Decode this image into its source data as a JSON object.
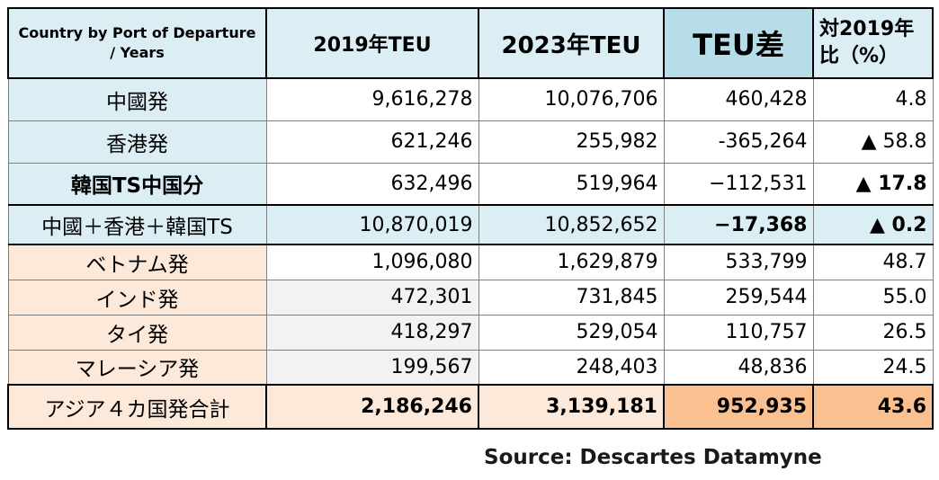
{
  "table": {
    "headers": [
      "Country by Port of Departure / Years",
      "2019年TEU",
      "2023年TEU",
      "TEU差",
      "対2019年比（%）"
    ],
    "rows": [
      {
        "label": "中國発",
        "y2019": "9,616,278",
        "y2023": "10,076,706",
        "diff": "460,428",
        "pct": "4.8"
      },
      {
        "label": "香港発",
        "y2019": "621,246",
        "y2023": "255,982",
        "diff": "-365,264",
        "pct": "▲ 58.8"
      },
      {
        "label": "韓国TS中国分",
        "y2019": "632,496",
        "y2023": "519,964",
        "diff": "−112,531",
        "pct": "▲ 17.8"
      },
      {
        "label": "中國＋香港＋韓国TS",
        "y2019": "10,870,019",
        "y2023": "10,852,652",
        "diff": "−17,368",
        "pct": "▲ 0.2"
      },
      {
        "label": "ベトナム発",
        "y2019": "1,096,080",
        "y2023": "1,629,879",
        "diff": "533,799",
        "pct": "48.7"
      },
      {
        "label": "インド発",
        "y2019": "472,301",
        "y2023": "731,845",
        "diff": "259,544",
        "pct": "55.0"
      },
      {
        "label": "タイ発",
        "y2019": "418,297",
        "y2023": "529,054",
        "diff": "110,757",
        "pct": "26.5"
      },
      {
        "label": "マレーシア発",
        "y2019": "199,567",
        "y2023": "248,403",
        "diff": "48,836",
        "pct": "24.5"
      },
      {
        "label": "アジア４カ国発合計",
        "y2019": "2,186,246",
        "y2023": "3,139,181",
        "diff": "952,935",
        "pct": "43.6"
      }
    ]
  },
  "source": "Source: Descartes Datamyne",
  "colors": {
    "header_blue": "#daeef3",
    "diff_header_blue": "#b7dee8",
    "peach": "#fde9d9",
    "orange": "#fac090",
    "grey_cell": "#f2f2f2"
  }
}
